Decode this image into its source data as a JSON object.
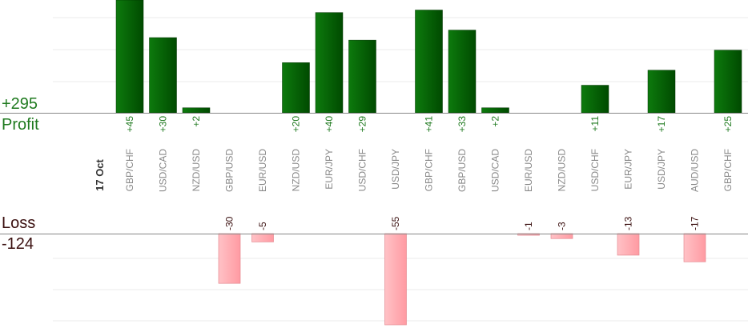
{
  "summary": {
    "profit_total": "+295",
    "profit_label": "Profit",
    "loss_label": "Loss",
    "loss_total": "-124"
  },
  "date_label": "17 Oct",
  "colors": {
    "profit_bar": "#0a6e0a",
    "profit_bar_dark": "#004d00",
    "profit_text": "#1f7a1f",
    "loss_bar": "#ffb3b8",
    "loss_text": "#3a0f0f",
    "axis": "#888888",
    "grid": "#ebebeb",
    "pair_label": "#888888"
  },
  "chart_data": {
    "type": "bar",
    "title": "",
    "xlabel": "",
    "ylabel": "",
    "ylim_profit": [
      0,
      45
    ],
    "ylim_loss": [
      0,
      55
    ],
    "categories": [
      "GBP/CHF",
      "USD/CAD",
      "NZD/USD",
      "GBP/USD",
      "EUR/USD",
      "NZD/USD",
      "EUR/JPY",
      "USD/CHF",
      "USD/JPY",
      "GBP/CHF",
      "GBP/USD",
      "USD/CAD",
      "EUR/USD",
      "NZD/USD",
      "USD/CHF",
      "EUR/JPY",
      "USD/JPY",
      "AUD/USD",
      "GBP/CHF"
    ],
    "values": [
      45,
      30,
      2,
      -30,
      -5,
      20,
      40,
      29,
      -55,
      41,
      33,
      2,
      -1,
      -3,
      11,
      -13,
      17,
      -17,
      25
    ],
    "value_labels": [
      "+45",
      "+30",
      "+2",
      "-30",
      "-5",
      "+20",
      "+40",
      "+29",
      "-55",
      "+41",
      "+33",
      "+2",
      "-1",
      "-3",
      "+11",
      "-13",
      "+17",
      "-17",
      "+25"
    ]
  }
}
